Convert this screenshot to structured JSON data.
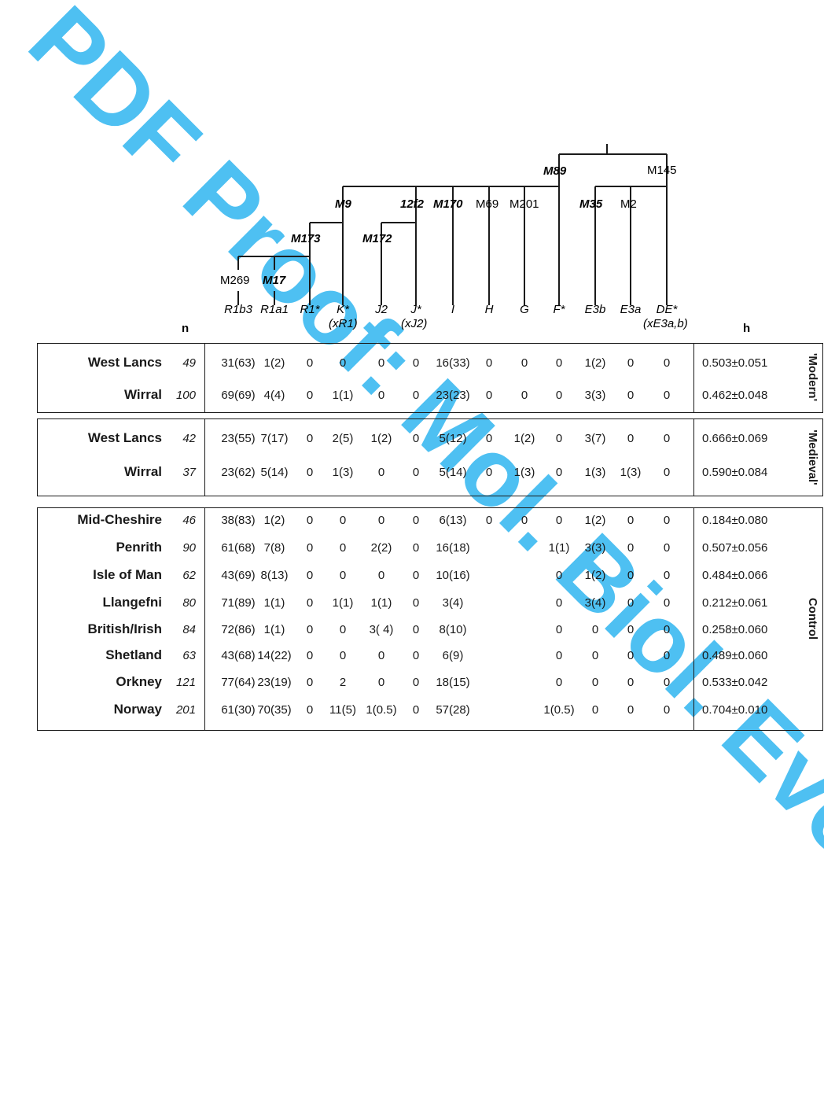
{
  "watermark": "PDF Proof: Mol. Biol. Evol.",
  "tree": {
    "markers": {
      "m89": "M89",
      "m145": "M145",
      "m9": "M9",
      "12f2": "12f2",
      "m170": "M170",
      "m69": "M69",
      "m201": "M201",
      "m35": "M35",
      "m2": "M2",
      "m173": "M173",
      "m172": "M172",
      "m269": "M269",
      "m17": "M17"
    }
  },
  "header": {
    "n_label": "n",
    "h_label": "h",
    "haplogroups": [
      "R1b3",
      "R1a1",
      "R1*",
      "K*",
      "J2",
      "J*",
      "I",
      "H",
      "G",
      "F*",
      "E3b",
      "E3a",
      "DE*"
    ],
    "sublabels": {
      "K": "(xR1)",
      "J": "(xJ2)",
      "DE": "(xE3a,b)"
    }
  },
  "groups": [
    {
      "label": "'Modern'",
      "rows": [
        {
          "pop": "West Lancs",
          "n": "49",
          "v": [
            "31(63)",
            "1(2)",
            "0",
            "0",
            "0",
            "0",
            "16(33)",
            "0",
            "0",
            "0",
            "1(2)",
            "0",
            "0"
          ],
          "h": "0.503±0.051"
        },
        {
          "pop": "Wirral",
          "n": "100",
          "v": [
            "69(69)",
            "4(4)",
            "0",
            "1(1)",
            "0",
            "0",
            "23(23)",
            "0",
            "0",
            "0",
            "3(3)",
            "0",
            "0"
          ],
          "h": "0.462±0.048"
        }
      ]
    },
    {
      "label": "'Medieval'",
      "rows": [
        {
          "pop": "West Lancs",
          "n": "42",
          "v": [
            "23(55)",
            "7(17)",
            "0",
            "2(5)",
            "1(2)",
            "0",
            "5(12)",
            "0",
            "1(2)",
            "0",
            "3(7)",
            "0",
            "0"
          ],
          "h": "0.666±0.069"
        },
        {
          "pop": "Wirral",
          "n": "37",
          "v": [
            "23(62)",
            "5(14)",
            "0",
            "1(3)",
            "0",
            "0",
            "5(14)",
            "0",
            "1(3)",
            "0",
            "1(3)",
            "1(3)",
            "0"
          ],
          "h": "0.590±0.084"
        }
      ]
    },
    {
      "label": "Control",
      "rows": [
        {
          "pop": "Mid-Cheshire",
          "n": "46",
          "v": [
            "38(83)",
            "1(2)",
            "0",
            "0",
            "0",
            "0",
            "6(13)",
            "0",
            "0",
            "0",
            "1(2)",
            "0",
            "0"
          ],
          "h": "0.184±0.080"
        },
        {
          "pop": "Penrith",
          "n": "90",
          "v": [
            "61(68)",
            "7(8)",
            "0",
            "0",
            "2(2)",
            "0",
            "16(18)",
            "",
            "",
            "1(1)",
            "3(3)",
            "0",
            "0"
          ],
          "h": "0.507±0.056"
        },
        {
          "pop": "Isle of Man",
          "n": "62",
          "v": [
            "43(69)",
            "8(13)",
            "0",
            "0",
            "0",
            "0",
            "10(16)",
            "",
            "",
            "0",
            "1(2)",
            "0",
            "0"
          ],
          "h": "0.484±0.066"
        },
        {
          "pop": "Llangefni",
          "n": "80",
          "v": [
            "71(89)",
            "1(1)",
            "0",
            "1(1)",
            "1(1)",
            "0",
            "3(4)",
            "",
            "",
            "0",
            "3(4)",
            "0",
            "0"
          ],
          "h": "0.212±0.061"
        },
        {
          "pop": "British/Irish",
          "n": "84",
          "v": [
            "72(86)",
            "1(1)",
            "0",
            "0",
            "3( 4)",
            "0",
            "8(10)",
            "",
            "",
            "0",
            "0",
            "0",
            "0"
          ],
          "h": "0.258±0.060"
        },
        {
          "pop": "Shetland",
          "n": "63",
          "v": [
            "43(68)",
            "14(22)",
            "0",
            "0",
            "0",
            "0",
            "6(9)",
            "",
            "",
            "0",
            "0",
            "0",
            "0"
          ],
          "h": "0.489±0.060"
        },
        {
          "pop": "Orkney",
          "n": "121",
          "v": [
            "77(64)",
            "23(19)",
            "0",
            "2",
            "0",
            "0",
            "18(15)",
            "",
            "",
            "0",
            "0",
            "0",
            "0"
          ],
          "h": "0.533±0.042"
        },
        {
          "pop": "Norway",
          "n": "201",
          "v": [
            "61(30)",
            "70(35)",
            "0",
            "11(5)",
            "1(0.5)",
            "0",
            "57(28)",
            "",
            "",
            "1(0.5)",
            "0",
            "0",
            "0"
          ],
          "h": "0.704±0.010"
        }
      ]
    }
  ]
}
